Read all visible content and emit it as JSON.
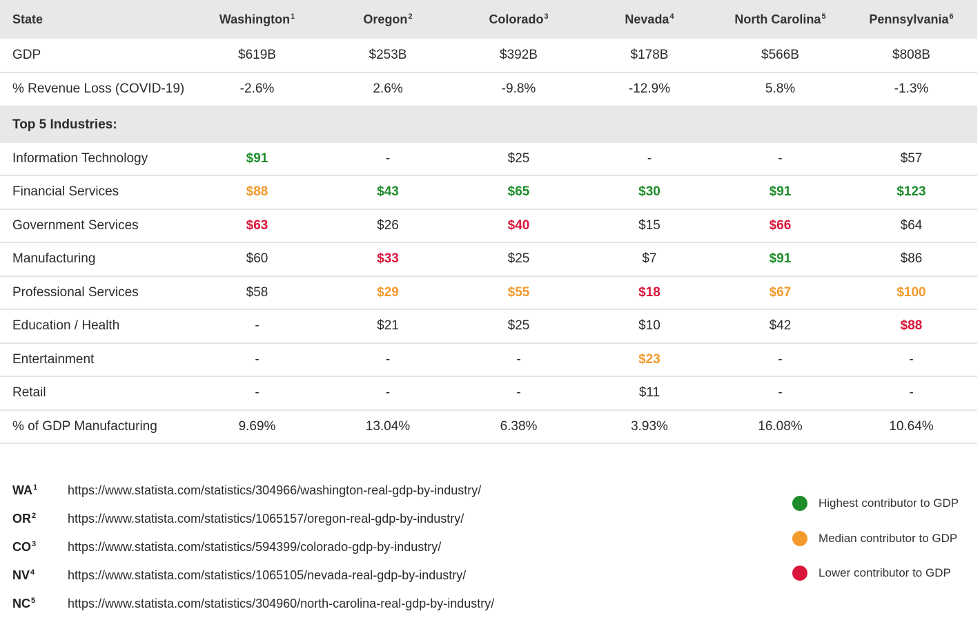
{
  "header": {
    "state_label": "State",
    "states": [
      {
        "name": "Washington",
        "sup": "1"
      },
      {
        "name": "Oregon",
        "sup": "2"
      },
      {
        "name": "Colorado",
        "sup": "3"
      },
      {
        "name": "Nevada",
        "sup": "4"
      },
      {
        "name": "North Carolina",
        "sup": "5"
      },
      {
        "name": "Pennsylvania",
        "sup": "6"
      }
    ]
  },
  "rows_top": [
    {
      "label": "GDP",
      "values": [
        "$619B",
        "$253B",
        "$392B",
        "$178B",
        "$566B",
        "$808B"
      ]
    },
    {
      "label": "% Revenue Loss (COVID-19)",
      "values": [
        "-2.6%",
        "2.6%",
        "-9.8%",
        "-12.9%",
        "5.8%",
        "-1.3%"
      ]
    }
  ],
  "section_label": "Top 5 Industries:",
  "industries": [
    {
      "label": "Information Technology",
      "cells": [
        {
          "v": "$91",
          "c": "green"
        },
        {
          "v": "-"
        },
        {
          "v": "$25"
        },
        {
          "v": "-"
        },
        {
          "v": "-"
        },
        {
          "v": "$57"
        }
      ]
    },
    {
      "label": "Financial Services",
      "cells": [
        {
          "v": "$88",
          "c": "orange"
        },
        {
          "v": "$43",
          "c": "green"
        },
        {
          "v": "$65",
          "c": "green"
        },
        {
          "v": "$30",
          "c": "green"
        },
        {
          "v": "$91",
          "c": "green"
        },
        {
          "v": "$123",
          "c": "green"
        }
      ]
    },
    {
      "label": "Government Services",
      "cells": [
        {
          "v": "$63",
          "c": "red"
        },
        {
          "v": "$26"
        },
        {
          "v": "$40",
          "c": "red"
        },
        {
          "v": "$15"
        },
        {
          "v": "$66",
          "c": "red"
        },
        {
          "v": "$64"
        }
      ]
    },
    {
      "label": "Manufacturing",
      "cells": [
        {
          "v": "$60"
        },
        {
          "v": "$33",
          "c": "red"
        },
        {
          "v": "$25"
        },
        {
          "v": "$7"
        },
        {
          "v": "$91",
          "c": "green"
        },
        {
          "v": "$86"
        }
      ]
    },
    {
      "label": "Professional Services",
      "cells": [
        {
          "v": "$58"
        },
        {
          "v": "$29",
          "c": "orange"
        },
        {
          "v": "$55",
          "c": "orange"
        },
        {
          "v": "$18",
          "c": "red"
        },
        {
          "v": "$67",
          "c": "orange"
        },
        {
          "v": "$100",
          "c": "orange"
        }
      ]
    },
    {
      "label": "Education / Health",
      "cells": [
        {
          "v": "-"
        },
        {
          "v": "$21"
        },
        {
          "v": "$25"
        },
        {
          "v": "$10"
        },
        {
          "v": "$42"
        },
        {
          "v": "$88",
          "c": "red"
        }
      ]
    },
    {
      "label": "Entertainment",
      "cells": [
        {
          "v": "-"
        },
        {
          "v": "-"
        },
        {
          "v": "-"
        },
        {
          "v": "$23",
          "c": "orange"
        },
        {
          "v": "-"
        },
        {
          "v": "-"
        }
      ]
    },
    {
      "label": "Retail",
      "cells": [
        {
          "v": "-"
        },
        {
          "v": "-"
        },
        {
          "v": "-"
        },
        {
          "v": "$11"
        },
        {
          "v": "-"
        },
        {
          "v": "-"
        }
      ]
    }
  ],
  "row_bottom": {
    "label": "% of GDP Manufacturing",
    "values": [
      "9.69%",
      "13.04%",
      "6.38%",
      "3.93%",
      "16.08%",
      "10.64%"
    ]
  },
  "footnotes": [
    {
      "code": "WA",
      "sup": "1",
      "url": "https://www.statista.com/statistics/304966/washington-real-gdp-by-industry/"
    },
    {
      "code": "OR",
      "sup": "2",
      "url": "https://www.statista.com/statistics/1065157/oregon-real-gdp-by-industry/"
    },
    {
      "code": "CO",
      "sup": "3",
      "url": "https://www.statista.com/statistics/594399/colorado-gdp-by-industry/"
    },
    {
      "code": "NV",
      "sup": "4",
      "url": "https://www.statista.com/statistics/1065105/nevada-real-gdp-by-industry/"
    },
    {
      "code": "NC",
      "sup": "5",
      "url": "https://www.statista.com/statistics/304960/north-carolina-real-gdp-by-industry/"
    }
  ],
  "legend": [
    {
      "label": "Highest contributor to GDP",
      "color": "#1e8c2a"
    },
    {
      "label": "Median contributor to GDP",
      "color": "#f39a2c"
    },
    {
      "label": "Lower contributor to GDP",
      "color": "#d9163a"
    }
  ],
  "colors": {
    "green": "#1e8c2a",
    "orange": "#f39a2c",
    "red": "#d9163a",
    "header_bg": "#e8e8e8"
  }
}
